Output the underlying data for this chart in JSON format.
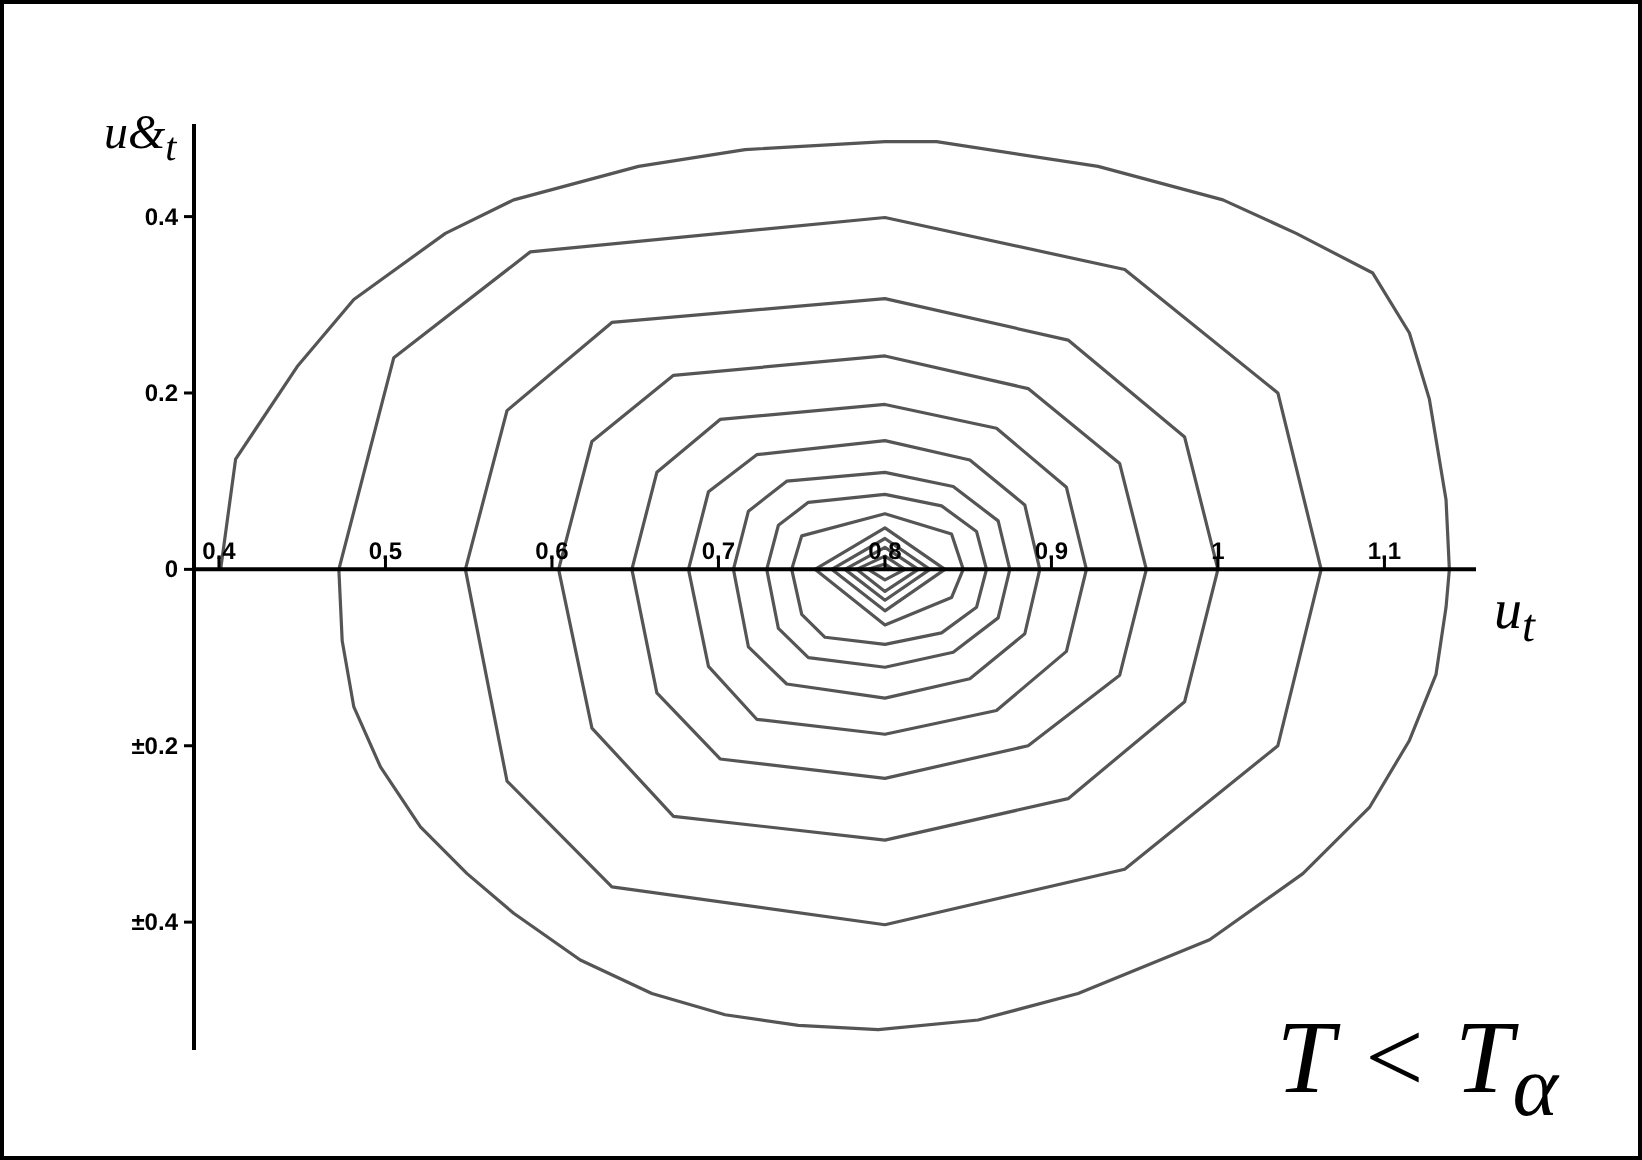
{
  "chart_data": {
    "type": "line",
    "xlabel": "u$_{t}$",
    "ylabel": "u&$_{t}$",
    "annotations": [
      "T < T$_{α}$"
    ],
    "xlim": [
      0.385,
      1.155
    ],
    "ylim": [
      -0.545,
      0.505
    ],
    "xticks": [
      0.4,
      0.5,
      0.6,
      0.7,
      0.8,
      0.9,
      1,
      1.1
    ],
    "yticks": [
      {
        "value": -0.4,
        "label": "±0.4"
      },
      {
        "value": -0.2,
        "label": "±0.2"
      },
      0,
      0.2,
      0.4
    ],
    "grid": false,
    "legend": false,
    "marker": "none",
    "line_style": "solid",
    "series": [
      {
        "color": "#555555",
        "x": [
          0.401,
          0.41,
          0.447,
          0.481,
          0.536,
          0.577,
          0.652,
          0.716,
          0.8,
          0.831,
          0.928,
          1.003,
          1.047,
          1.093,
          1.115,
          1.127,
          1.137,
          1.139,
          1.137,
          1.131,
          1.115,
          1.091,
          1.051,
          0.995,
          0.916,
          0.856,
          0.796,
          0.748,
          0.704,
          0.66,
          0.617,
          0.577,
          0.549,
          0.521,
          0.497,
          0.481,
          0.474,
          0.472,
          0.505,
          0.587,
          0.8,
          0.944,
          1.036,
          1.062,
          1.036,
          0.944,
          0.8,
          0.636,
          0.573,
          0.548,
          0.573,
          0.636,
          0.8,
          0.91,
          0.98,
          1.0,
          0.98,
          0.91,
          0.8,
          0.673,
          0.624,
          0.604,
          0.624,
          0.673,
          0.8,
          0.886,
          0.941,
          0.957,
          0.941,
          0.886,
          0.8,
          0.701,
          0.663,
          0.648,
          0.663,
          0.701,
          0.8,
          0.867,
          0.909,
          0.921,
          0.909,
          0.867,
          0.8,
          0.723,
          0.694,
          0.682,
          0.694,
          0.723,
          0.8,
          0.851,
          0.884,
          0.893,
          0.884,
          0.851,
          0.8,
          0.741,
          0.718,
          0.709,
          0.718,
          0.741,
          0.8,
          0.841,
          0.868,
          0.875,
          0.868,
          0.841,
          0.8,
          0.754,
          0.736,
          0.729,
          0.736,
          0.754,
          0.8,
          0.834,
          0.855,
          0.861,
          0.855,
          0.834,
          0.8,
          0.764,
          0.75,
          0.744,
          0.75,
          0.8,
          0.84,
          0.847,
          0.84,
          0.8,
          0.758,
          0.8,
          0.836,
          0.8,
          0.768,
          0.8,
          0.827,
          0.8,
          0.776,
          0.8,
          0.82,
          0.8,
          0.783,
          0.8,
          0.812,
          0.8,
          0.79,
          0.8,
          0.805,
          0.8
        ],
        "values": [
          0,
          0.125,
          0.23,
          0.306,
          0.381,
          0.419,
          0.457,
          0.476,
          0.485,
          0.485,
          0.457,
          0.419,
          0.381,
          0.336,
          0.268,
          0.193,
          0.079,
          0,
          -0.043,
          -0.119,
          -0.194,
          -0.27,
          -0.345,
          -0.42,
          -0.481,
          -0.511,
          -0.522,
          -0.517,
          -0.505,
          -0.481,
          -0.443,
          -0.39,
          -0.345,
          -0.292,
          -0.224,
          -0.156,
          -0.081,
          0,
          0.24,
          0.36,
          0.399,
          0.34,
          0.2,
          0,
          -0.2,
          -0.34,
          -0.403,
          -0.36,
          -0.24,
          0,
          0.18,
          0.28,
          0.307,
          0.26,
          0.15,
          0,
          -0.15,
          -0.26,
          -0.307,
          -0.28,
          -0.18,
          0,
          0.145,
          0.22,
          0.242,
          0.205,
          0.12,
          0,
          -0.12,
          -0.2,
          -0.237,
          -0.215,
          -0.14,
          0,
          0.11,
          0.17,
          0.187,
          0.16,
          0.093,
          0,
          -0.093,
          -0.16,
          -0.187,
          -0.17,
          -0.11,
          0,
          0.088,
          0.13,
          0.146,
          0.124,
          0.073,
          0,
          -0.073,
          -0.124,
          -0.146,
          -0.13,
          -0.088,
          0,
          0.066,
          0.1,
          0.11,
          0.094,
          0.055,
          0,
          -0.055,
          -0.094,
          -0.111,
          -0.1,
          -0.067,
          0,
          0.05,
          0.076,
          0.085,
          0.072,
          0.043,
          0,
          -0.043,
          -0.072,
          -0.085,
          -0.077,
          -0.051,
          0,
          0.038,
          0.063,
          0.04,
          0,
          -0.032,
          -0.063,
          0,
          0.047,
          0,
          -0.047,
          0,
          0.035,
          0,
          -0.035,
          0,
          0.025,
          0,
          -0.025,
          0,
          0.015,
          0,
          -0.012,
          0,
          0.006,
          0,
          0
        ]
      }
    ]
  }
}
